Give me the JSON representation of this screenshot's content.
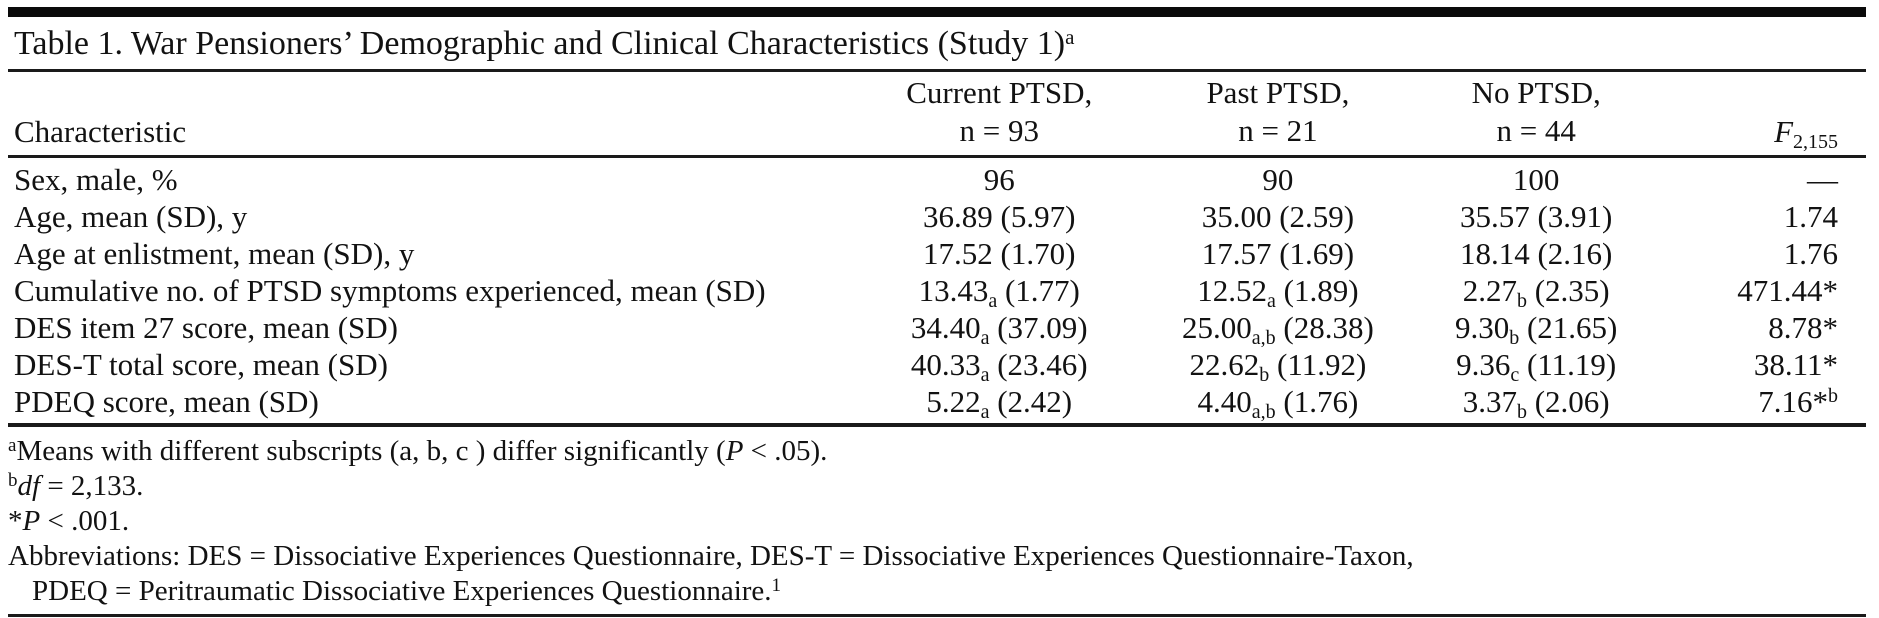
{
  "title": {
    "text": "Table 1. War Pensioners’ Demographic and Clinical Characteristics (Study 1)",
    "sup": "a"
  },
  "table": {
    "col_headers": {
      "characteristic": "Characteristic",
      "groups": [
        {
          "line1": "Current PTSD,",
          "line2": "n = 93"
        },
        {
          "line1": "Past PTSD,",
          "line2": "n = 21"
        },
        {
          "line1": "No PTSD,",
          "line2": "n = 44"
        }
      ],
      "f": {
        "symbol": "F",
        "sub": "2,155"
      }
    },
    "rows": [
      {
        "label": "Sex, male, %",
        "cells": [
          {
            "text": "96"
          },
          {
            "text": "90"
          },
          {
            "text": "100"
          }
        ],
        "f": {
          "text": "—"
        }
      },
      {
        "label": "Age, mean (SD), y",
        "cells": [
          {
            "text": "36.89",
            "tail": " (5.97)"
          },
          {
            "text": "35.00",
            "tail": " (2.59)"
          },
          {
            "text": "35.57",
            "tail": " (3.91)"
          }
        ],
        "f": {
          "text": "1.74"
        }
      },
      {
        "label": "Age at enlistment, mean (SD), y",
        "cells": [
          {
            "text": "17.52",
            "tail": " (1.70)"
          },
          {
            "text": "17.57",
            "tail": " (1.69)"
          },
          {
            "text": "18.14",
            "tail": " (2.16)"
          }
        ],
        "f": {
          "text": "1.76"
        }
      },
      {
        "label": "Cumulative no. of PTSD symptoms experienced, mean (SD)",
        "cells": [
          {
            "text": "13.43",
            "sub": "a",
            "tail": " (1.77)"
          },
          {
            "text": "12.52",
            "sub": "a",
            "tail": " (1.89)"
          },
          {
            "text": "2.27",
            "sub": "b",
            "tail": " (2.35)"
          }
        ],
        "f": {
          "text": "471.44*"
        }
      },
      {
        "label": "DES item 27 score, mean (SD)",
        "cells": [
          {
            "text": "34.40",
            "sub": "a",
            "tail": " (37.09)"
          },
          {
            "text": "25.00",
            "sub": "a,b",
            "tail": " (28.38)"
          },
          {
            "text": "9.30",
            "sub": "b",
            "tail": " (21.65)"
          }
        ],
        "f": {
          "text": "8.78*"
        }
      },
      {
        "label": "DES-T total score, mean (SD)",
        "cells": [
          {
            "text": "40.33",
            "sub": "a",
            "tail": " (23.46)"
          },
          {
            "text": "22.62",
            "sub": "b",
            "tail": " (11.92)"
          },
          {
            "text": "9.36",
            "sub": "c",
            "tail": " (11.19)"
          }
        ],
        "f": {
          "text": "38.11*"
        }
      },
      {
        "label": "PDEQ score, mean (SD)",
        "cells": [
          {
            "text": "5.22",
            "sub": "a",
            "tail": " (2.42)"
          },
          {
            "text": "4.40",
            "sub": "a,b",
            "tail": " (1.76)"
          },
          {
            "text": "3.37",
            "sub": "b",
            "tail": " (2.06)"
          }
        ],
        "f": {
          "text": "7.16*",
          "sup": "b"
        }
      }
    ]
  },
  "footnotes": [
    {
      "indent": false,
      "segments": [
        {
          "t": "a",
          "s": "sup"
        },
        {
          "t": "Means with different subscripts (a, b, c ) differ significantly (",
          "s": ""
        },
        {
          "t": "P",
          "s": "i"
        },
        {
          "t": " < .05).",
          "s": ""
        }
      ]
    },
    {
      "indent": false,
      "segments": [
        {
          "t": "b",
          "s": "sup"
        },
        {
          "t": "df",
          "s": "i"
        },
        {
          "t": " = 2,133.",
          "s": ""
        }
      ]
    },
    {
      "indent": false,
      "segments": [
        {
          "t": "*",
          "s": ""
        },
        {
          "t": "P",
          "s": "i"
        },
        {
          "t": " < .001.",
          "s": ""
        }
      ]
    },
    {
      "indent": false,
      "segments": [
        {
          "t": "Abbreviations: DES = Dissociative Experiences Questionnaire, DES-T = Dissociative Experiences Questionnaire-Taxon,",
          "s": ""
        }
      ]
    },
    {
      "indent": true,
      "segments": [
        {
          "t": "PDEQ = Peritraumatic Dissociative Experiences Questionnaire.",
          "s": ""
        },
        {
          "t": "1",
          "s": "sup"
        }
      ]
    }
  ],
  "colors": {
    "text": "#121212",
    "rule": "#1a1a1a",
    "background": "#ffffff"
  }
}
